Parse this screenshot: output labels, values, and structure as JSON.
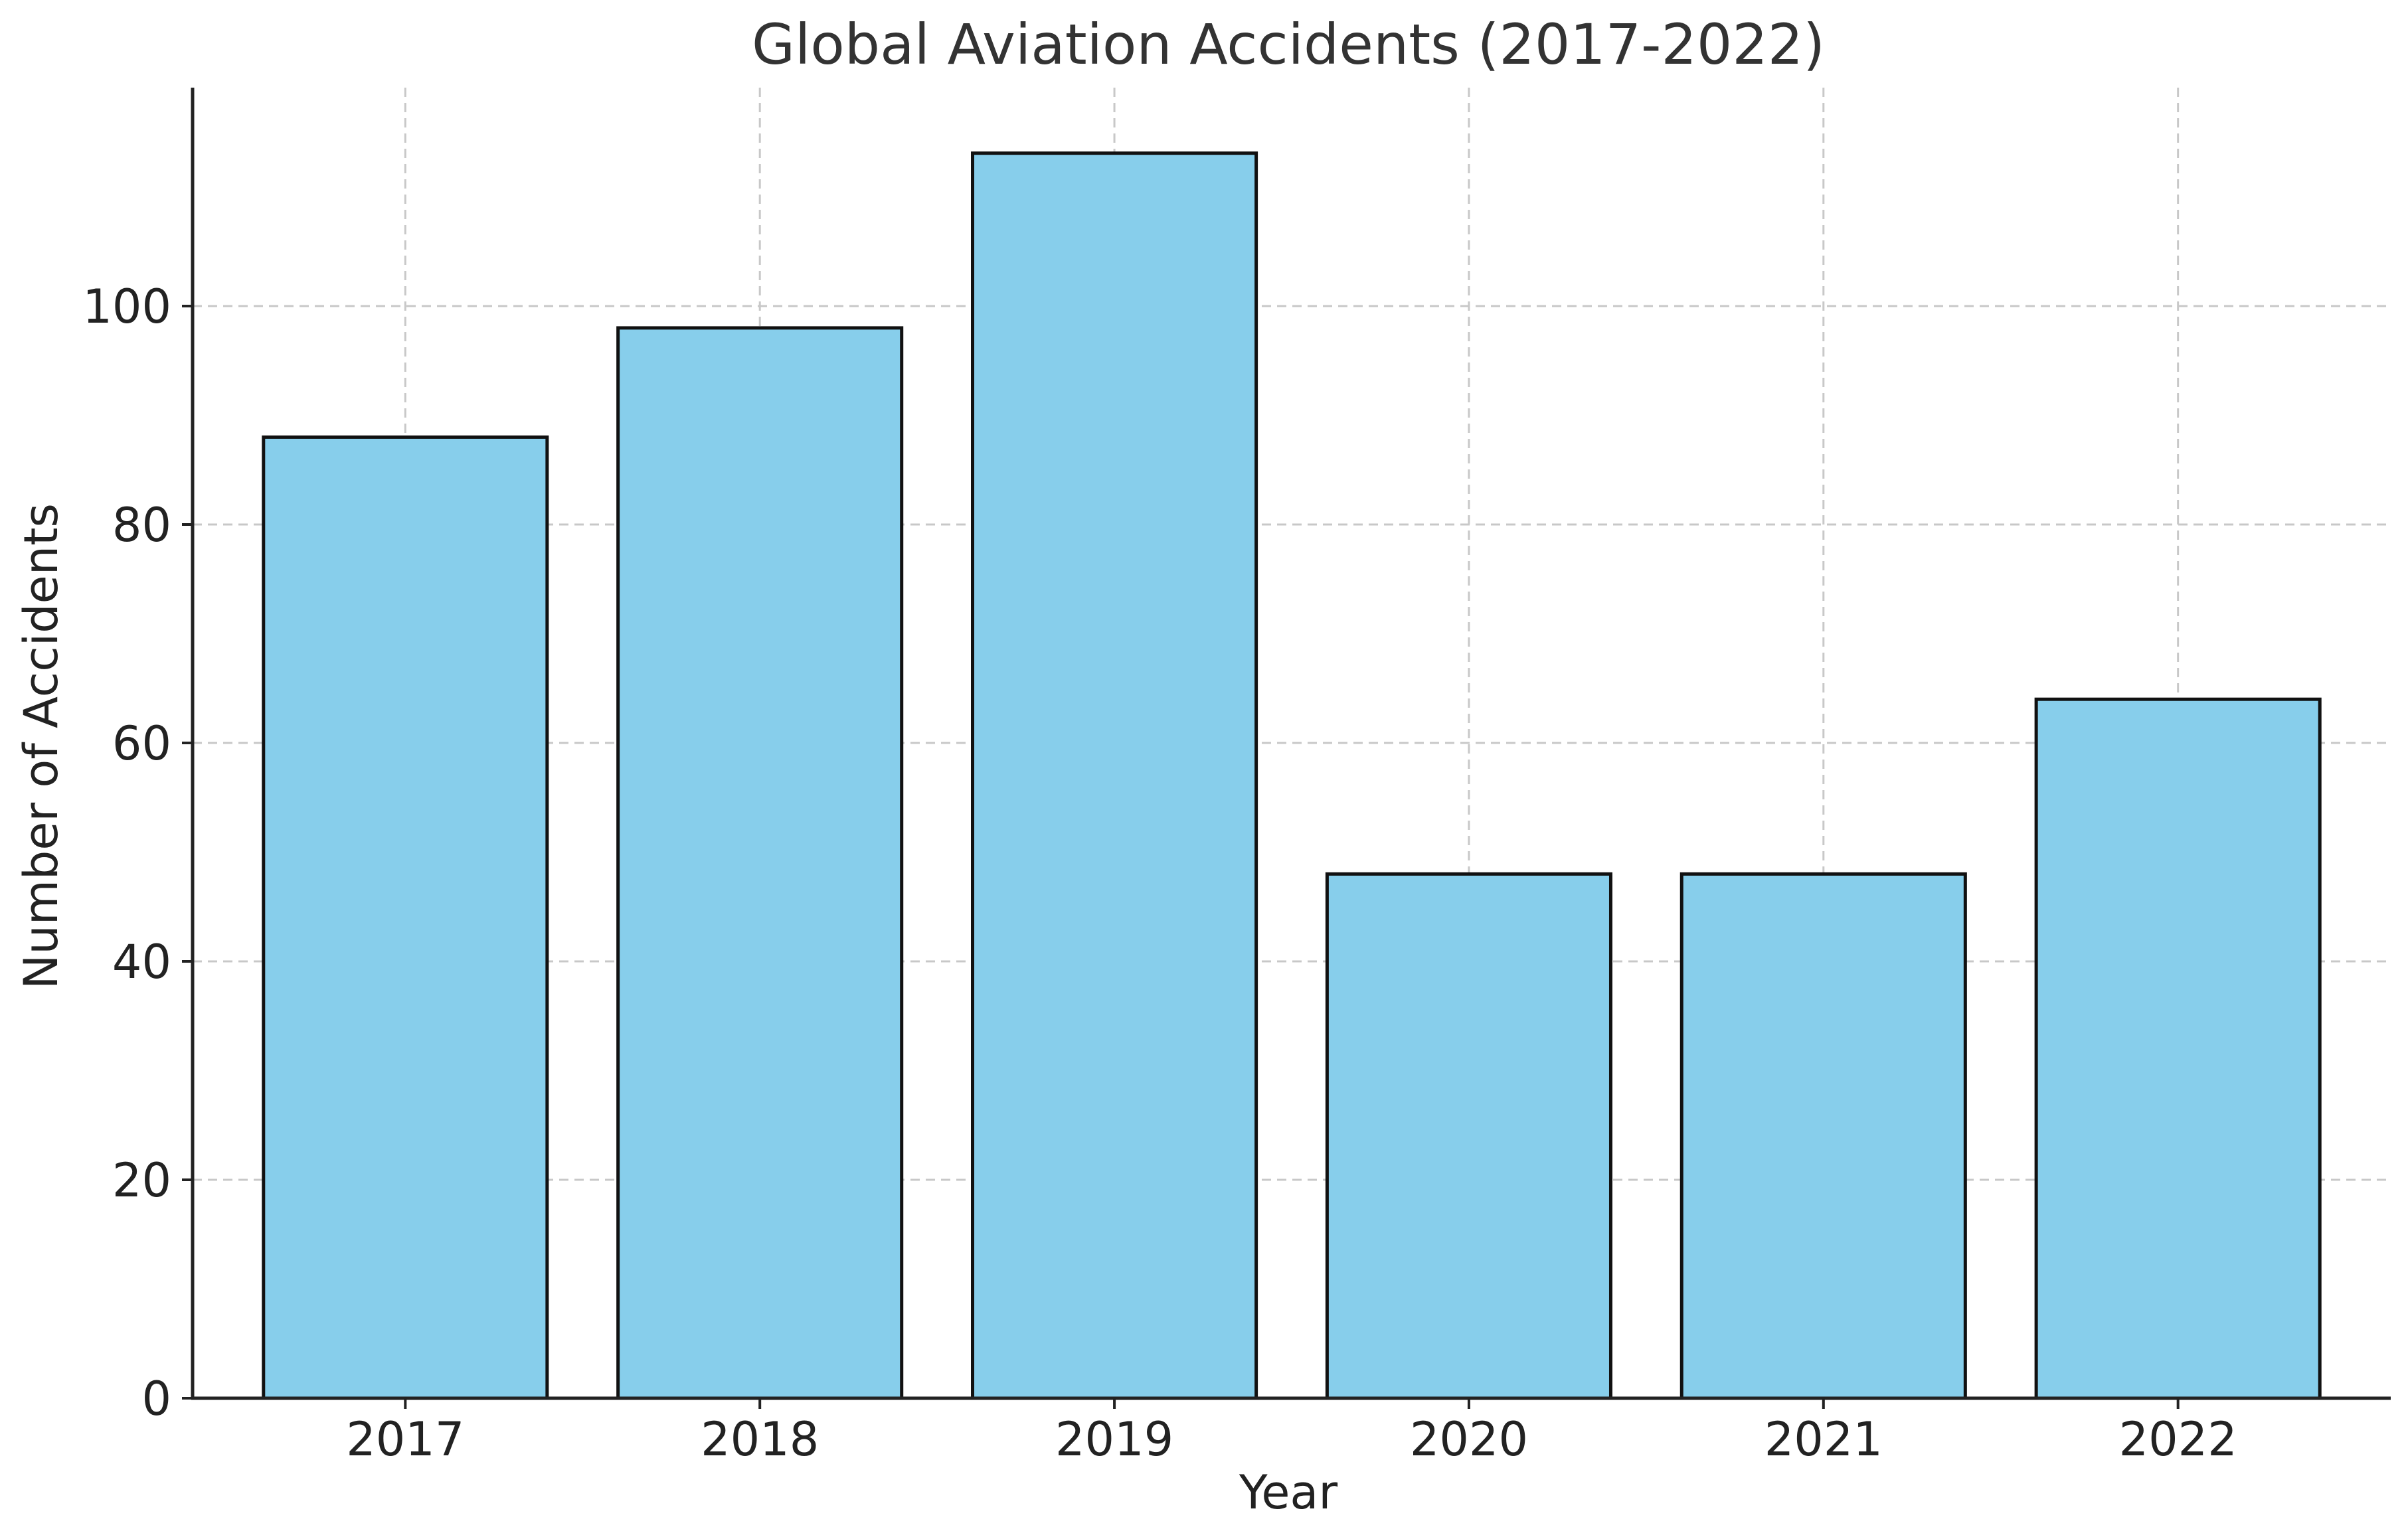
{
  "chart_data": {
    "type": "bar",
    "title": "Global Aviation Accidents (2017-2022)",
    "xlabel": "Year",
    "ylabel": "Number of Accidents",
    "categories": [
      "2017",
      "2018",
      "2019",
      "2020",
      "2021",
      "2022"
    ],
    "values": [
      88,
      98,
      114,
      48,
      48,
      64
    ],
    "ylim": [
      0,
      120
    ],
    "yticks": [
      0,
      20,
      40,
      60,
      80,
      100
    ],
    "grid": true,
    "bar_color": "#87CEEB",
    "edge_color": "#111111"
  }
}
